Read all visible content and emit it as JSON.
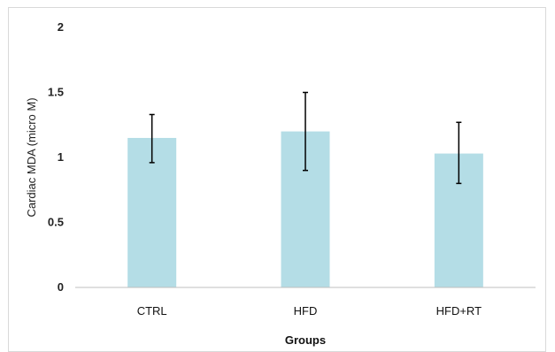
{
  "chart_data": {
    "type": "bar",
    "categories": [
      "CTRL",
      "HFD",
      "HFD+RT"
    ],
    "values": [
      1.15,
      1.2,
      1.03
    ],
    "error_upper": [
      1.33,
      1.5,
      1.27
    ],
    "error_lower": [
      0.96,
      0.9,
      0.8
    ],
    "xlabel": "Groups",
    "ylabel": "Cardiac MDA (micro M)",
    "ylim": [
      0,
      2
    ],
    "yticks": [
      "0",
      "0.5",
      "1",
      "1.5",
      "2"
    ],
    "ytick_values": [
      0,
      0.5,
      1,
      1.5,
      2
    ],
    "grid": false,
    "legend": "none",
    "bar_color": "#b4dde6",
    "error_bar_color": "#000000",
    "axis_color": "#bfbfbf",
    "frame_color": "#d9d9d9"
  }
}
